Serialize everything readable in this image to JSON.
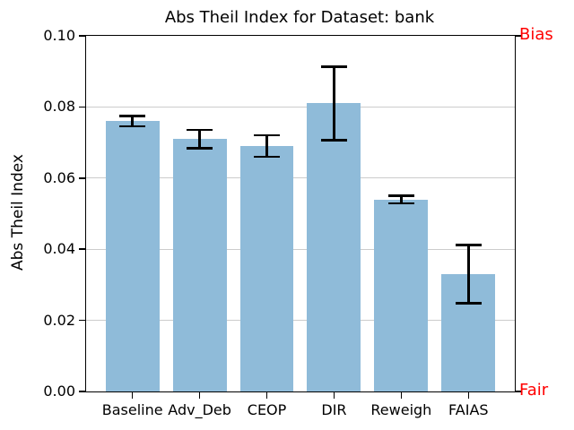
{
  "title": "Abs Theil Index for Dataset: bank",
  "chart_data": {
    "type": "bar",
    "title": "Abs Theil Index for Dataset: bank",
    "xlabel": "",
    "ylabel": "Abs Theil Index",
    "categories": [
      "Baseline",
      "Adv_Deb",
      "CEOP",
      "DIR",
      "Reweigh",
      "FAIAS"
    ],
    "values": [
      0.076,
      0.071,
      0.069,
      0.081,
      0.054,
      0.033
    ],
    "errors": [
      0.0015,
      0.0026,
      0.003,
      0.0103,
      0.0011,
      0.0082
    ],
    "ylim": [
      0,
      0.1
    ],
    "yticks": [
      0,
      0.02,
      0.04,
      0.06,
      0.08,
      0.1
    ],
    "ytick_labels": [
      "0.00",
      "0.02",
      "0.04",
      "0.06",
      "0.08",
      "0.10"
    ],
    "grid": true,
    "legend": "none",
    "bar_color": "#8FBBD9",
    "error_color": "#000000",
    "grid_color": "#cccccc",
    "right_axis": {
      "top_label": "Bias",
      "bottom_label": "Fair",
      "label_color": "#ff0000"
    }
  }
}
